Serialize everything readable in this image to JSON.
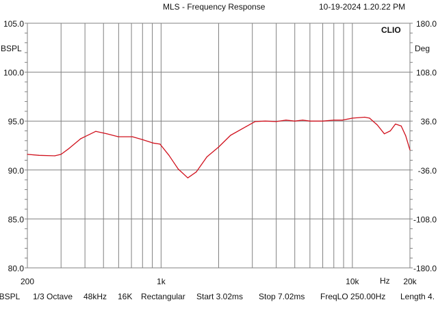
{
  "header": {
    "title": "MLS - Frequency Response",
    "timestamp": "10-19-2024 1.20.22 PM"
  },
  "brand": "CLIO",
  "left_unit": "BSPL",
  "right_unit": "Deg",
  "status_bar": [
    "lBSPL",
    "1/3 Octave",
    "48kHz",
    "16K",
    "Rectangular",
    "Start 3.02ms",
    "Stop 7.02ms",
    "FreqLO 250.00Hz",
    "Length 4."
  ],
  "chart_data": {
    "type": "line",
    "title": "MLS - Frequency Response",
    "xlabel": "Hz",
    "ylabel": "BSPL",
    "y2label": "Deg",
    "xscale": "log",
    "xlim": [
      200,
      20000
    ],
    "ylim": [
      80,
      105
    ],
    "y2lim": [
      -180,
      180
    ],
    "x_tick_labels": [
      "200",
      "1k",
      "10k",
      "20k"
    ],
    "x_tick_values": [
      200,
      1000,
      10000,
      20000
    ],
    "x_grid": [
      300,
      400,
      500,
      600,
      700,
      800,
      900,
      1000,
      2000,
      3000,
      4000,
      5000,
      6000,
      7000,
      8000,
      9000,
      10000
    ],
    "y_tick_labels": [
      "105.0",
      "100.0",
      "95.0",
      "90.0",
      "85.0",
      "80.0"
    ],
    "y_tick_values": [
      105,
      100,
      95,
      90,
      85,
      80
    ],
    "y2_tick_labels": [
      "180.0",
      "108.0",
      "36.0",
      "-36.0",
      "-108.0",
      "-180.0"
    ],
    "grid": true,
    "series_color": "#d0101c",
    "series": [
      {
        "x": [
          200,
          230,
          278,
          300,
          330,
          380,
          456,
          520,
          598,
          709,
          800,
          907,
          987,
          1100,
          1229,
          1379,
          1526,
          1737,
          2000,
          2309,
          2790,
          3100,
          3500,
          4000,
          4500,
          5000,
          5500,
          6000,
          7000,
          8000,
          8880,
          10000,
          11600,
          12300,
          13500,
          14700,
          15800,
          16800,
          18000,
          19000,
          20000
        ],
        "y": [
          91.6,
          91.5,
          91.45,
          91.6,
          92.2,
          93.2,
          93.95,
          93.7,
          93.4,
          93.4,
          93.1,
          92.76,
          92.65,
          91.5,
          90.1,
          89.2,
          89.8,
          91.35,
          92.35,
          93.55,
          94.45,
          94.95,
          95.0,
          94.95,
          95.1,
          95.0,
          95.1,
          95.0,
          95.0,
          95.1,
          95.1,
          95.3,
          95.4,
          95.3,
          94.6,
          93.7,
          94.0,
          94.7,
          94.5,
          93.5,
          92.05
        ]
      }
    ]
  }
}
